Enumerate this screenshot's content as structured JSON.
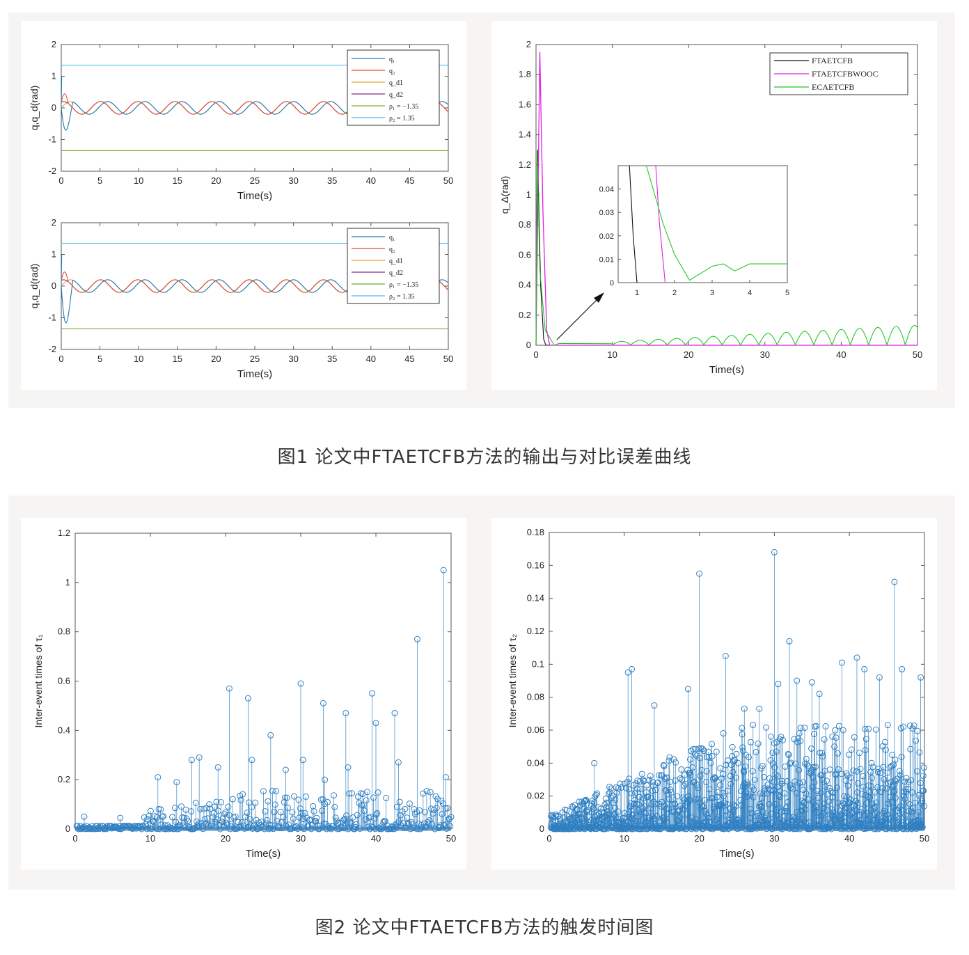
{
  "figure1": {
    "caption": "图1  论文中FTAETCFB方法的输出与对比误差曲线"
  },
  "figure2": {
    "caption": "图2  论文中FTAETCFB方法的触发时间图"
  },
  "colors": {
    "q1": "#1f77b4",
    "q2": "#e0502a",
    "qd1": "#e8a23b",
    "qd2": "#7e2f8e",
    "lower": "#77ac30",
    "upper": "#4dbeee",
    "ftaetcfb": "#111111",
    "ftaetcfbwooc": "#e11de1",
    "ecaetcfb": "#22c822",
    "stem": "#2f7fc1"
  },
  "chart_data": [
    {
      "id": "top-left",
      "type": "line",
      "xlabel": "Time(s)",
      "ylabel": "q,q_d(rad)",
      "xlim": [
        0,
        50
      ],
      "ylim": [
        -2,
        2
      ],
      "xticks": [
        "0",
        "5",
        "10",
        "15",
        "20",
        "25",
        "30",
        "35",
        "40",
        "45",
        "50"
      ],
      "yticks": [
        "-2",
        "-1",
        "0",
        "1",
        "2"
      ],
      "legend": [
        "q₁",
        "q₂",
        "q_d1",
        "q_d2",
        "ρ₁ = −1.35",
        "ρ₂ = 1.35"
      ],
      "legend_position": "top-right",
      "series": [
        {
          "name": "q₁",
          "description": "transient dip to about -1 near t=0.3 then tracks q_d1"
        },
        {
          "name": "q₂",
          "description": "transient near t=0 then tracks q_d2"
        },
        {
          "name": "q_d1",
          "wave": {
            "amplitude": 0.2,
            "period": 4.8,
            "phase": 0
          }
        },
        {
          "name": "q_d2",
          "wave": {
            "amplitude": 0.2,
            "period": 4.8,
            "phase": 1.2
          }
        },
        {
          "name": "ρ₁ = −1.35",
          "constant": -1.35
        },
        {
          "name": "ρ₂ = 1.35",
          "constant": 1.35
        }
      ]
    },
    {
      "id": "bottom-left",
      "type": "line",
      "xlabel": "Time(s)",
      "ylabel": "q,q_d(rad)",
      "xlim": [
        0,
        50
      ],
      "ylim": [
        -2,
        2
      ],
      "xticks": [
        "0",
        "5",
        "10",
        "15",
        "20",
        "25",
        "30",
        "35",
        "40",
        "45",
        "50"
      ],
      "yticks": [
        "-2",
        "-1",
        "0",
        "1",
        "2"
      ],
      "legend": [
        "q₁",
        "q₂",
        "q_d1",
        "q_d2",
        "ρ₁ = −1.35",
        "ρ₂ = 1.35"
      ],
      "legend_position": "top-right",
      "series": [
        {
          "name": "q₁",
          "description": "transient dip to about -1.55 near t=0.6 then tracks q_d1"
        },
        {
          "name": "q₂",
          "description": "transient near t=0 then tracks q_d2"
        },
        {
          "name": "q_d1",
          "wave": {
            "amplitude": 0.2,
            "period": 4.8,
            "phase": 0
          }
        },
        {
          "name": "q_d2",
          "wave": {
            "amplitude": 0.2,
            "period": 4.8,
            "phase": 1.2
          }
        },
        {
          "name": "ρ₁ = −1.35",
          "constant": -1.35
        },
        {
          "name": "ρ₂ = 1.35",
          "constant": 1.35
        }
      ]
    },
    {
      "id": "top-right",
      "type": "line",
      "xlabel": "Time(s)",
      "ylabel": "q_Δ(rad)",
      "xlim": [
        0,
        50
      ],
      "ylim": [
        0,
        2
      ],
      "xticks": [
        "0",
        "10",
        "20",
        "30",
        "40",
        "50"
      ],
      "yticks": [
        "0",
        "0.2",
        "0.4",
        "0.6",
        "0.8",
        "1",
        "1.2",
        "1.4",
        "1.6",
        "1.8",
        "2"
      ],
      "legend": [
        "FTAETCFB",
        "FTAETCFBWOOC",
        "ECAETCFB"
      ],
      "legend_position": "top-right",
      "series": [
        {
          "name": "FTAETCFB",
          "points": [
            [
              0,
              0
            ],
            [
              0.2,
              1.3
            ],
            [
              0.6,
              0.4
            ],
            [
              1.0,
              0.04
            ],
            [
              1.3,
              0
            ],
            [
              50,
              0
            ]
          ]
        },
        {
          "name": "FTAETCFBWOOC",
          "points": [
            [
              0,
              0
            ],
            [
              0.5,
              1.95
            ],
            [
              0.9,
              0.9
            ],
            [
              1.4,
              0.1
            ],
            [
              1.8,
              0
            ],
            [
              50,
              0
            ]
          ]
        },
        {
          "name": "ECAETCFB",
          "points": [
            [
              0,
              0
            ],
            [
              0.15,
              1.28
            ],
            [
              0.5,
              0.5
            ],
            [
              1.2,
              0.1
            ],
            [
              2.4,
              0
            ],
            [
              3,
              0.012
            ],
            [
              10,
              0.01
            ]
          ],
          "description": "after t=10 a sequence of arches with amplitude growing from about 0.02 to 0.13 by t=50"
        }
      ],
      "inset": {
        "xlim": [
          0.5,
          5
        ],
        "ylim": [
          0,
          0.05
        ],
        "xticks": [
          "1",
          "2",
          "3",
          "4",
          "5"
        ],
        "yticks": [
          "0",
          "0.01",
          "0.02",
          "0.03",
          "0.04"
        ],
        "series": [
          {
            "name": "FTAETCFB",
            "points": [
              [
                0.8,
                0.05
              ],
              [
                0.9,
                0.02
              ],
              [
                1.0,
                0
              ]
            ]
          },
          {
            "name": "FTAETCFBWOOC",
            "points": [
              [
                1.5,
                0.05
              ],
              [
                1.6,
                0.025
              ],
              [
                1.75,
                0
              ]
            ]
          },
          {
            "name": "ECAETCFB",
            "points": [
              [
                1.25,
                0.05
              ],
              [
                1.7,
                0.025
              ],
              [
                2.0,
                0.012
              ],
              [
                2.4,
                0.001
              ],
              [
                3.0,
                0.007
              ],
              [
                3.3,
                0.008
              ],
              [
                3.6,
                0.005
              ],
              [
                4.0,
                0.008
              ],
              [
                5,
                0.008
              ]
            ]
          }
        ]
      }
    },
    {
      "id": "bottom-left-stem",
      "type": "scatter",
      "style": "stem",
      "xlabel": "Time(s)",
      "ylabel": "Inter-event times of τ₁",
      "xlim": [
        0,
        50
      ],
      "ylim": [
        0,
        1.2
      ],
      "xticks": [
        "0",
        "10",
        "20",
        "30",
        "40",
        "50"
      ],
      "yticks": [
        "0",
        "0.2",
        "0.4",
        "0.6",
        "0.8",
        "1",
        "1.2"
      ],
      "peaks": [
        [
          1.2,
          0.05
        ],
        [
          6,
          0.045
        ],
        [
          11,
          0.21
        ],
        [
          13.5,
          0.19
        ],
        [
          15.5,
          0.28
        ],
        [
          16.5,
          0.29
        ],
        [
          19,
          0.25
        ],
        [
          20.5,
          0.57
        ],
        [
          23,
          0.53
        ],
        [
          23.5,
          0.28
        ],
        [
          26,
          0.38
        ],
        [
          28,
          0.24
        ],
        [
          30,
          0.59
        ],
        [
          30.3,
          0.28
        ],
        [
          33,
          0.51
        ],
        [
          33.2,
          0.2
        ],
        [
          36,
          0.47
        ],
        [
          36.3,
          0.25
        ],
        [
          39.5,
          0.55
        ],
        [
          40,
          0.43
        ],
        [
          42.5,
          0.47
        ],
        [
          43,
          0.27
        ],
        [
          45.5,
          0.77
        ],
        [
          49,
          1.05
        ],
        [
          49.3,
          0.21
        ]
      ]
    },
    {
      "id": "bottom-right-stem",
      "type": "scatter",
      "style": "stem",
      "xlabel": "Time(s)",
      "ylabel": "Inter-event times of τ₂",
      "xlim": [
        0,
        50
      ],
      "ylim": [
        0,
        0.18
      ],
      "xticks": [
        "0",
        "10",
        "20",
        "30",
        "40",
        "50"
      ],
      "yticks": [
        "0",
        "0.02",
        "0.04",
        "0.06",
        "0.08",
        "0.1",
        "0.12",
        "0.14",
        "0.16",
        "0.18"
      ],
      "peaks": [
        [
          6,
          0.04
        ],
        [
          10.5,
          0.095
        ],
        [
          11,
          0.097
        ],
        [
          14,
          0.075
        ],
        [
          18.5,
          0.085
        ],
        [
          20,
          0.155
        ],
        [
          23.5,
          0.105
        ],
        [
          26,
          0.073
        ],
        [
          28,
          0.073
        ],
        [
          30,
          0.168
        ],
        [
          30.5,
          0.088
        ],
        [
          32,
          0.114
        ],
        [
          33,
          0.09
        ],
        [
          35,
          0.089
        ],
        [
          36,
          0.082
        ],
        [
          39,
          0.101
        ],
        [
          41,
          0.104
        ],
        [
          42,
          0.097
        ],
        [
          44,
          0.092
        ],
        [
          46,
          0.15
        ],
        [
          47,
          0.097
        ],
        [
          49.5,
          0.092
        ]
      ]
    }
  ]
}
